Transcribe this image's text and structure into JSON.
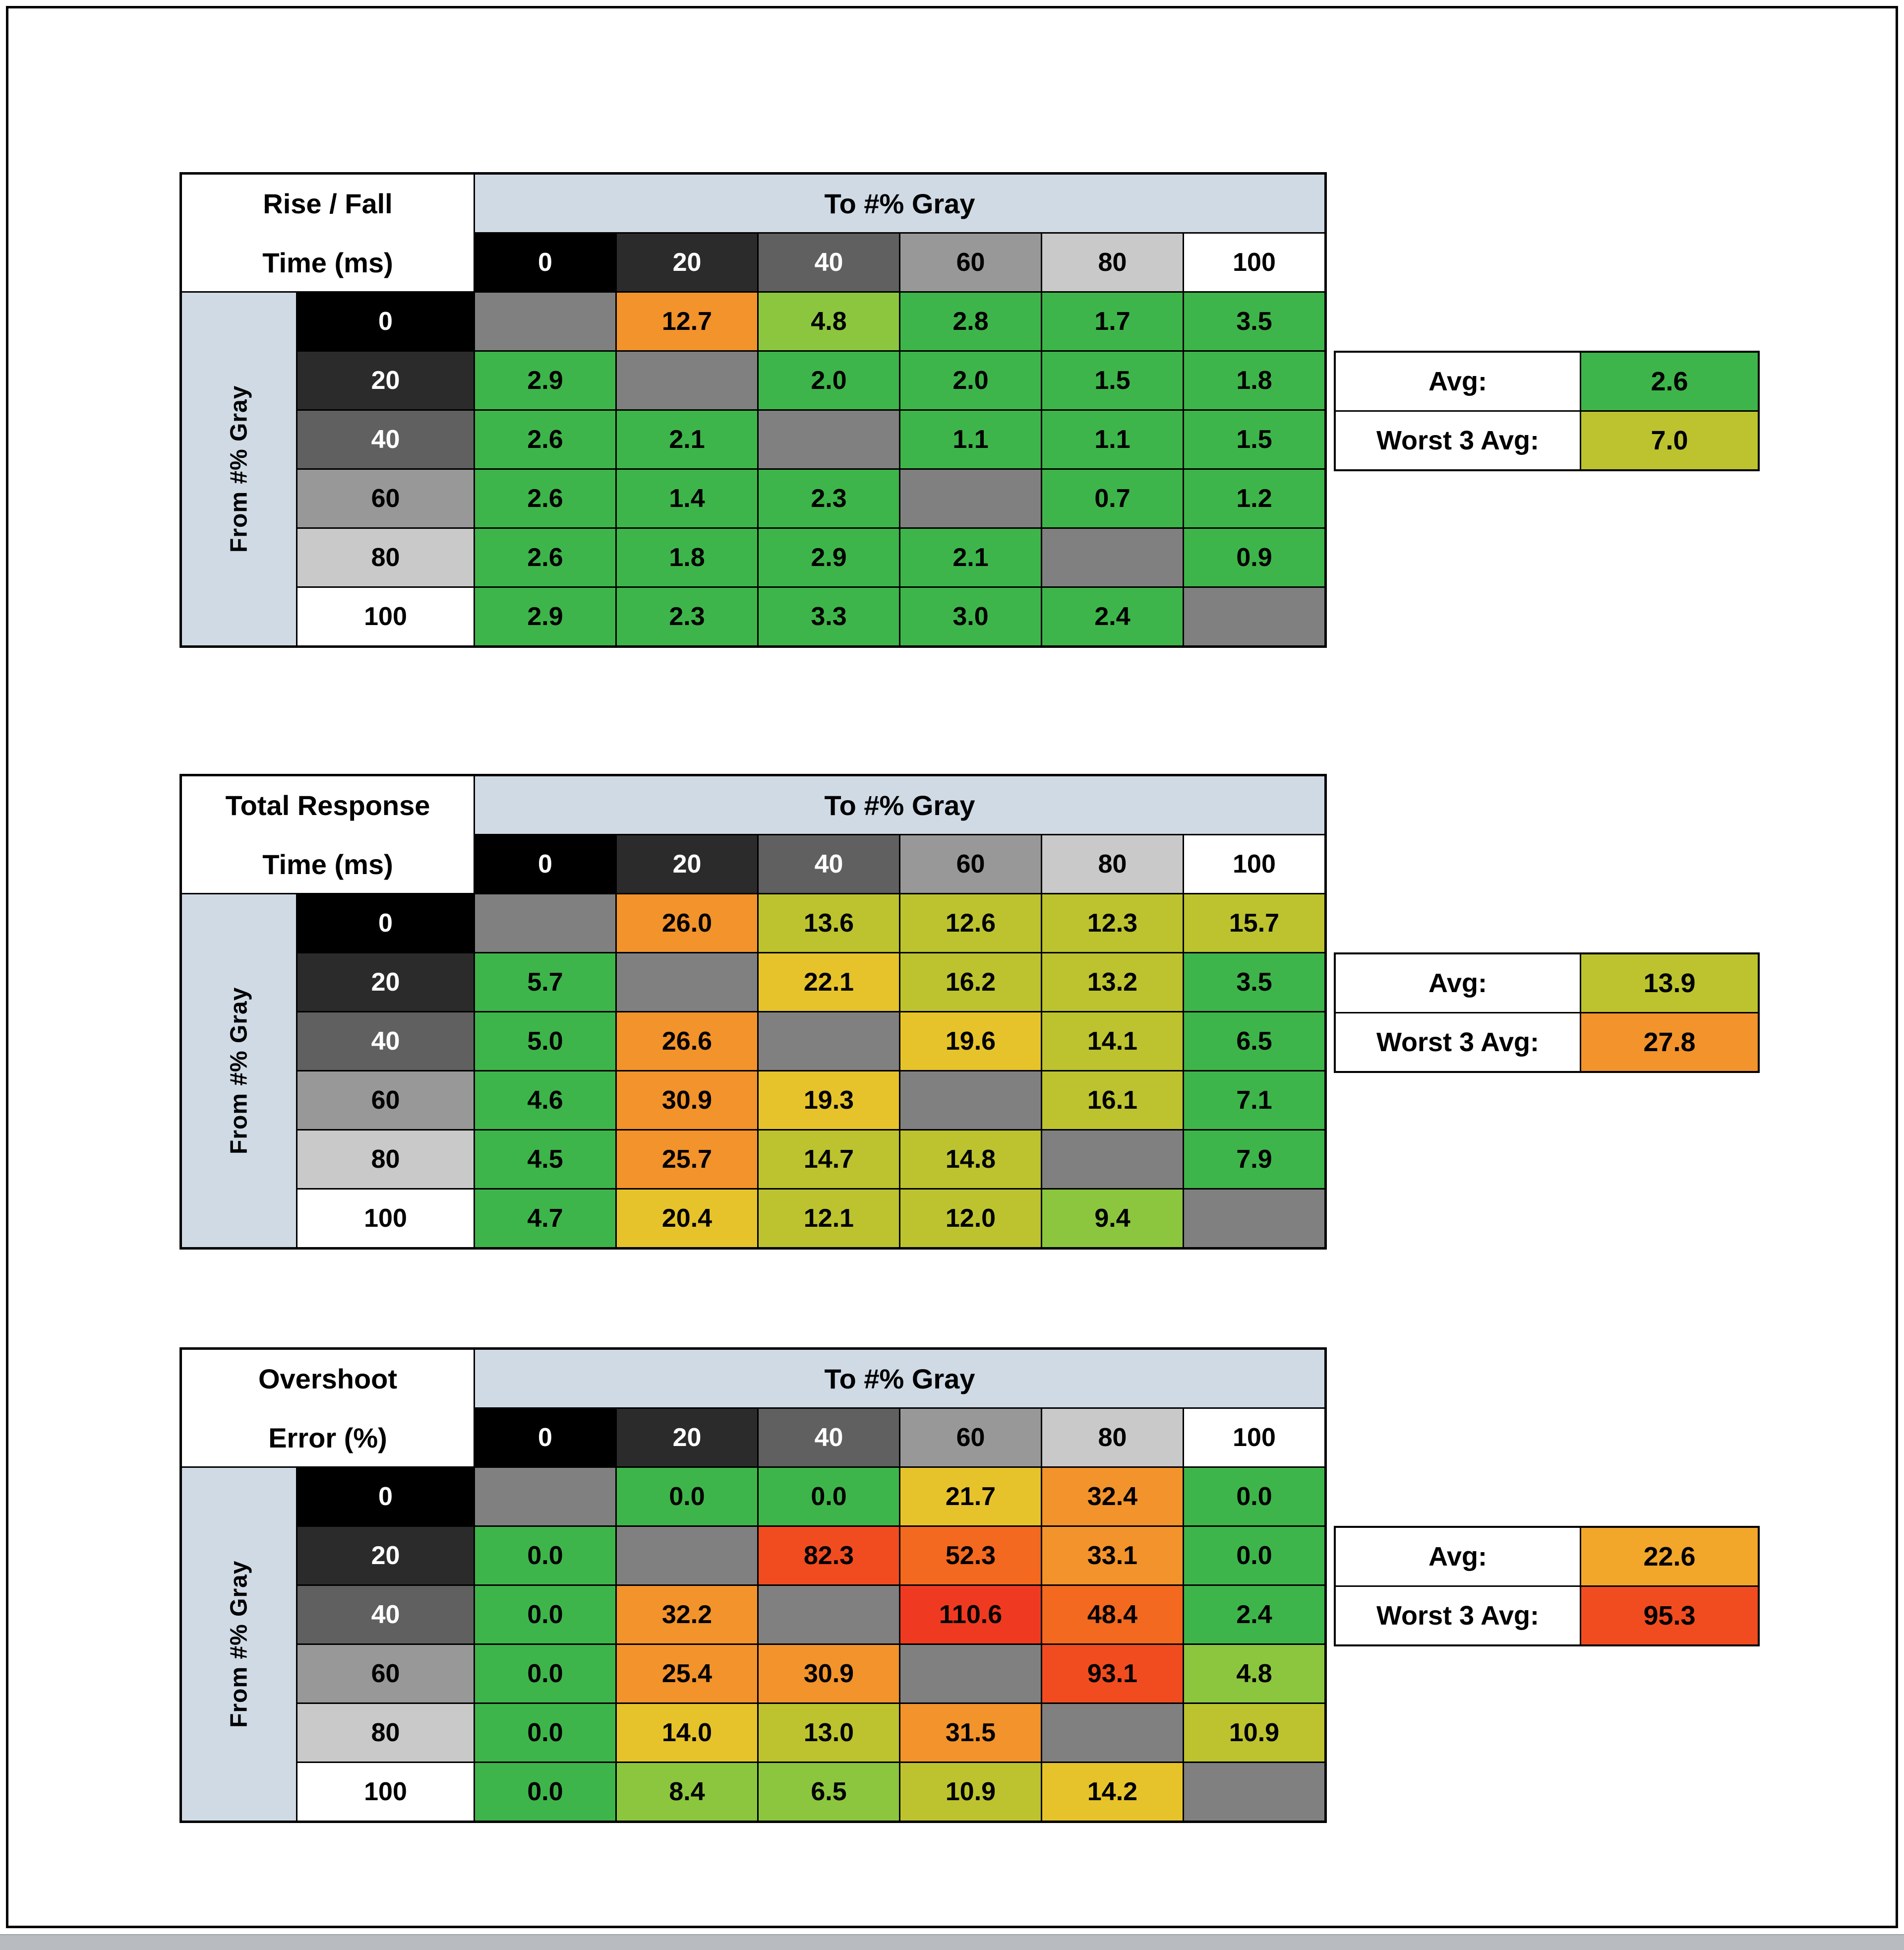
{
  "palette": {
    "g": "#3eb54a",
    "gy": "#8cc63f",
    "yg": "#bcc32f",
    "y": "#e6c32b",
    "a": "#f2a62a",
    "o": "#f2932b",
    "do": "#f2691f",
    "r": "#f14c20",
    "rr": "#ef3a21",
    "diag": "#808080"
  },
  "gray_headers": {
    "labels": [
      "0",
      "20",
      "40",
      "60",
      "80",
      "100"
    ],
    "bg": [
      "#000000",
      "#2b2b2b",
      "#606060",
      "#989898",
      "#c9c9c9",
      "#ffffff"
    ],
    "fg": [
      "#ffffff",
      "#ffffff",
      "#ffffff",
      "#000000",
      "#000000",
      "#000000"
    ]
  },
  "tables": [
    {
      "title_line1": "Rise / Fall",
      "title_line2": "Time (ms)",
      "col_banner": "To #% Gray",
      "row_banner": "From #% Gray",
      "rows": [
        {
          "label": "0",
          "cells": [
            [
              "",
              "diag"
            ],
            [
              "12.7",
              "o"
            ],
            [
              "4.8",
              "gy"
            ],
            [
              "2.8",
              "g"
            ],
            [
              "1.7",
              "g"
            ],
            [
              "3.5",
              "g"
            ]
          ]
        },
        {
          "label": "20",
          "cells": [
            [
              "2.9",
              "g"
            ],
            [
              "",
              "diag"
            ],
            [
              "2.0",
              "g"
            ],
            [
              "2.0",
              "g"
            ],
            [
              "1.5",
              "g"
            ],
            [
              "1.8",
              "g"
            ]
          ]
        },
        {
          "label": "40",
          "cells": [
            [
              "2.6",
              "g"
            ],
            [
              "2.1",
              "g"
            ],
            [
              "",
              "diag"
            ],
            [
              "1.1",
              "g"
            ],
            [
              "1.1",
              "g"
            ],
            [
              "1.5",
              "g"
            ]
          ]
        },
        {
          "label": "60",
          "cells": [
            [
              "2.6",
              "g"
            ],
            [
              "1.4",
              "g"
            ],
            [
              "2.3",
              "g"
            ],
            [
              "",
              "diag"
            ],
            [
              "0.7",
              "g"
            ],
            [
              "1.2",
              "g"
            ]
          ]
        },
        {
          "label": "80",
          "cells": [
            [
              "2.6",
              "g"
            ],
            [
              "1.8",
              "g"
            ],
            [
              "2.9",
              "g"
            ],
            [
              "2.1",
              "g"
            ],
            [
              "",
              "diag"
            ],
            [
              "0.9",
              "g"
            ]
          ]
        },
        {
          "label": "100",
          "cells": [
            [
              "2.9",
              "g"
            ],
            [
              "2.3",
              "g"
            ],
            [
              "3.3",
              "g"
            ],
            [
              "3.0",
              "g"
            ],
            [
              "2.4",
              "g"
            ],
            [
              "",
              "diag"
            ]
          ]
        }
      ],
      "summary": {
        "avg_label": "Avg:",
        "avg_value": "2.6",
        "avg_color": "g",
        "worst_label": "Worst 3 Avg:",
        "worst_value": "7.0",
        "worst_color": "yg"
      }
    },
    {
      "title_line1": "Total Response",
      "title_line2": "Time (ms)",
      "col_banner": "To #% Gray",
      "row_banner": "From #% Gray",
      "rows": [
        {
          "label": "0",
          "cells": [
            [
              "",
              "diag"
            ],
            [
              "26.0",
              "o"
            ],
            [
              "13.6",
              "yg"
            ],
            [
              "12.6",
              "yg"
            ],
            [
              "12.3",
              "yg"
            ],
            [
              "15.7",
              "yg"
            ]
          ]
        },
        {
          "label": "20",
          "cells": [
            [
              "5.7",
              "g"
            ],
            [
              "",
              "diag"
            ],
            [
              "22.1",
              "y"
            ],
            [
              "16.2",
              "yg"
            ],
            [
              "13.2",
              "yg"
            ],
            [
              "3.5",
              "g"
            ]
          ]
        },
        {
          "label": "40",
          "cells": [
            [
              "5.0",
              "g"
            ],
            [
              "26.6",
              "o"
            ],
            [
              "",
              "diag"
            ],
            [
              "19.6",
              "y"
            ],
            [
              "14.1",
              "yg"
            ],
            [
              "6.5",
              "g"
            ]
          ]
        },
        {
          "label": "60",
          "cells": [
            [
              "4.6",
              "g"
            ],
            [
              "30.9",
              "o"
            ],
            [
              "19.3",
              "y"
            ],
            [
              "",
              "diag"
            ],
            [
              "16.1",
              "yg"
            ],
            [
              "7.1",
              "g"
            ]
          ]
        },
        {
          "label": "80",
          "cells": [
            [
              "4.5",
              "g"
            ],
            [
              "25.7",
              "o"
            ],
            [
              "14.7",
              "yg"
            ],
            [
              "14.8",
              "yg"
            ],
            [
              "",
              "diag"
            ],
            [
              "7.9",
              "g"
            ]
          ]
        },
        {
          "label": "100",
          "cells": [
            [
              "4.7",
              "g"
            ],
            [
              "20.4",
              "y"
            ],
            [
              "12.1",
              "yg"
            ],
            [
              "12.0",
              "yg"
            ],
            [
              "9.4",
              "gy"
            ],
            [
              "",
              "diag"
            ]
          ]
        }
      ],
      "summary": {
        "avg_label": "Avg:",
        "avg_value": "13.9",
        "avg_color": "yg",
        "worst_label": "Worst 3 Avg:",
        "worst_value": "27.8",
        "worst_color": "o"
      }
    },
    {
      "title_line1": "Overshoot",
      "title_line2": "Error (%)",
      "col_banner": "To #% Gray",
      "row_banner": "From #% Gray",
      "rows": [
        {
          "label": "0",
          "cells": [
            [
              "",
              "diag"
            ],
            [
              "0.0",
              "g"
            ],
            [
              "0.0",
              "g"
            ],
            [
              "21.7",
              "y"
            ],
            [
              "32.4",
              "o"
            ],
            [
              "0.0",
              "g"
            ]
          ]
        },
        {
          "label": "20",
          "cells": [
            [
              "0.0",
              "g"
            ],
            [
              "",
              "diag"
            ],
            [
              "82.3",
              "r"
            ],
            [
              "52.3",
              "do"
            ],
            [
              "33.1",
              "o"
            ],
            [
              "0.0",
              "g"
            ]
          ]
        },
        {
          "label": "40",
          "cells": [
            [
              "0.0",
              "g"
            ],
            [
              "32.2",
              "o"
            ],
            [
              "",
              "diag"
            ],
            [
              "110.6",
              "rr"
            ],
            [
              "48.4",
              "do"
            ],
            [
              "2.4",
              "g"
            ]
          ]
        },
        {
          "label": "60",
          "cells": [
            [
              "0.0",
              "g"
            ],
            [
              "25.4",
              "o"
            ],
            [
              "30.9",
              "o"
            ],
            [
              "",
              "diag"
            ],
            [
              "93.1",
              "r"
            ],
            [
              "4.8",
              "gy"
            ]
          ]
        },
        {
          "label": "80",
          "cells": [
            [
              "0.0",
              "g"
            ],
            [
              "14.0",
              "y"
            ],
            [
              "13.0",
              "yg"
            ],
            [
              "31.5",
              "o"
            ],
            [
              "",
              "diag"
            ],
            [
              "10.9",
              "yg"
            ]
          ]
        },
        {
          "label": "100",
          "cells": [
            [
              "0.0",
              "g"
            ],
            [
              "8.4",
              "gy"
            ],
            [
              "6.5",
              "gy"
            ],
            [
              "10.9",
              "yg"
            ],
            [
              "14.2",
              "y"
            ],
            [
              "",
              "diag"
            ]
          ]
        }
      ],
      "summary": {
        "avg_label": "Avg:",
        "avg_value": "22.6",
        "avg_color": "a",
        "worst_label": "Worst 3 Avg:",
        "worst_value": "95.3",
        "worst_color": "r"
      }
    }
  ],
  "chart_data": [
    {
      "type": "heatmap",
      "title": "Rise / Fall Time (ms)",
      "xlabel": "To #% Gray",
      "ylabel": "From #% Gray",
      "x_categories": [
        0,
        20,
        40,
        60,
        80,
        100
      ],
      "y_categories": [
        0,
        20,
        40,
        60,
        80,
        100
      ],
      "values": [
        [
          null,
          12.7,
          4.8,
          2.8,
          1.7,
          3.5
        ],
        [
          2.9,
          null,
          2.0,
          2.0,
          1.5,
          1.8
        ],
        [
          2.6,
          2.1,
          null,
          1.1,
          1.1,
          1.5
        ],
        [
          2.6,
          1.4,
          2.3,
          null,
          0.7,
          1.2
        ],
        [
          2.6,
          1.8,
          2.9,
          2.1,
          null,
          0.9
        ],
        [
          2.9,
          2.3,
          3.3,
          3.0,
          2.4,
          null
        ]
      ],
      "avg": 2.6,
      "worst_3_avg": 7.0
    },
    {
      "type": "heatmap",
      "title": "Total Response Time (ms)",
      "xlabel": "To #% Gray",
      "ylabel": "From #% Gray",
      "x_categories": [
        0,
        20,
        40,
        60,
        80,
        100
      ],
      "y_categories": [
        0,
        20,
        40,
        60,
        80,
        100
      ],
      "values": [
        [
          null,
          26.0,
          13.6,
          12.6,
          12.3,
          15.7
        ],
        [
          5.7,
          null,
          22.1,
          16.2,
          13.2,
          3.5
        ],
        [
          5.0,
          26.6,
          null,
          19.6,
          14.1,
          6.5
        ],
        [
          4.6,
          30.9,
          19.3,
          null,
          16.1,
          7.1
        ],
        [
          4.5,
          25.7,
          14.7,
          14.8,
          null,
          7.9
        ],
        [
          4.7,
          20.4,
          12.1,
          12.0,
          9.4,
          null
        ]
      ],
      "avg": 13.9,
      "worst_3_avg": 27.8
    },
    {
      "type": "heatmap",
      "title": "Overshoot Error (%)",
      "xlabel": "To #% Gray",
      "ylabel": "From #% Gray",
      "x_categories": [
        0,
        20,
        40,
        60,
        80,
        100
      ],
      "y_categories": [
        0,
        20,
        40,
        60,
        80,
        100
      ],
      "values": [
        [
          null,
          0.0,
          0.0,
          21.7,
          32.4,
          0.0
        ],
        [
          0.0,
          null,
          82.3,
          52.3,
          33.1,
          0.0
        ],
        [
          0.0,
          32.2,
          null,
          110.6,
          48.4,
          2.4
        ],
        [
          0.0,
          25.4,
          30.9,
          null,
          93.1,
          4.8
        ],
        [
          0.0,
          14.0,
          13.0,
          31.5,
          null,
          10.9
        ],
        [
          0.0,
          8.4,
          6.5,
          10.9,
          14.2,
          null
        ]
      ],
      "avg": 22.6,
      "worst_3_avg": 95.3
    }
  ]
}
